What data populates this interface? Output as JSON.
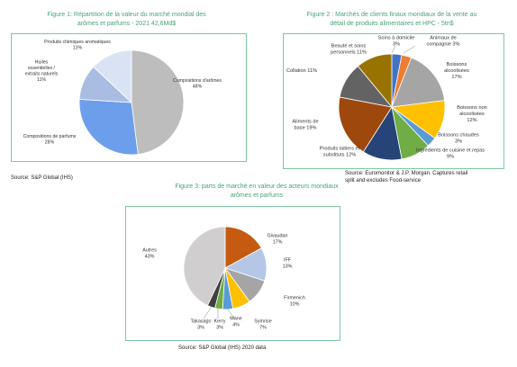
{
  "chart_data": [
    {
      "type": "pie",
      "title_lines": [
        "Figure 1: Répartition de la valeur du marché mondial des",
        "arômes et parfums - 2021 42,6Md$"
      ],
      "source": "Source: S&P Global (IHS)",
      "slices": [
        {
          "label": [
            "Compositions d'arômes",
            "48%"
          ],
          "value": 48,
          "color": "#bdbdbd"
        },
        {
          "label": [
            "Compositions de parfums",
            "28%"
          ],
          "value": 28,
          "color": "#6d9eeb"
        },
        {
          "label": [
            "Huiles",
            "essentielles /",
            "extraits naturels",
            "11%"
          ],
          "value": 11,
          "color": "#a9bde3"
        },
        {
          "label": [
            "Produits chimiques aromatiques",
            "13%"
          ],
          "value": 13,
          "color": "#dae3f3"
        }
      ]
    },
    {
      "type": "pie",
      "title_lines": [
        "Figure 2 : Marchés de clients finaux mondiaux de la vente au",
        "détail de produits alimentaires et HPC - 5tn$"
      ],
      "source_lines": [
        "Source: Euromonitor & J.P. Morgan. Captures retail",
        "split and excludes Food-service"
      ],
      "slices": [
        {
          "label": [
            "Soins à domicile",
            "3%"
          ],
          "value": 3,
          "color": "#4472c4"
        },
        {
          "label": [
            "Animaux de",
            "compagnie 3%"
          ],
          "value": 3,
          "color": "#ed7d31"
        },
        {
          "label": [
            "Boissons",
            "alcoolisées",
            "17%"
          ],
          "value": 17,
          "color": "#a5a5a5"
        },
        {
          "label": [
            "Boissons non",
            "alcoolisées",
            "12%"
          ],
          "value": 12,
          "color": "#ffc000"
        },
        {
          "label": [
            "Boissons chaudes",
            "3%"
          ],
          "value": 3,
          "color": "#5b9bd5"
        },
        {
          "label": [
            "Ingrédients de cuisine et repas",
            "9%"
          ],
          "value": 9,
          "color": "#70ad47"
        },
        {
          "label": [
            "Produits laitiers et",
            "substituts 12%"
          ],
          "value": 12,
          "color": "#264478"
        },
        {
          "label": [
            "Aliments de",
            "base 19%"
          ],
          "value": 19,
          "color": "#9e480e"
        },
        {
          "label": [
            "Collation 11%"
          ],
          "value": 11,
          "color": "#636363"
        },
        {
          "label": [
            "Beauté et soins",
            "personnels 11%"
          ],
          "value": 11,
          "color": "#997300"
        }
      ]
    },
    {
      "type": "pie",
      "title_lines": [
        "Figure 3: parts de marché en valeur des acteurs mondiaux",
        "arômes et parfums"
      ],
      "source": "Source: S&P Global (IHS) 2020 data",
      "slices": [
        {
          "label": [
            "Givaudan",
            "17%"
          ],
          "value": 17,
          "color": "#c55a11"
        },
        {
          "label": [
            "IFF",
            "13%"
          ],
          "value": 13,
          "color": "#b4c7e7"
        },
        {
          "label": [
            "Firmenich",
            "10%"
          ],
          "value": 10,
          "color": "#a5a5a5"
        },
        {
          "label": [
            "Symrise",
            "7%"
          ],
          "value": 7,
          "color": "#ffc000"
        },
        {
          "label": [
            "Mane",
            "4%"
          ],
          "value": 4,
          "color": "#5b9bd5"
        },
        {
          "label": [
            "Kerry",
            "3%"
          ],
          "value": 3,
          "color": "#70ad47"
        },
        {
          "label": [
            "Takasago",
            "3%"
          ],
          "value": 3,
          "color": "#404040"
        },
        {
          "label": [
            "Autres",
            "43%"
          ],
          "value": 43,
          "color": "#d0cece"
        }
      ]
    }
  ]
}
